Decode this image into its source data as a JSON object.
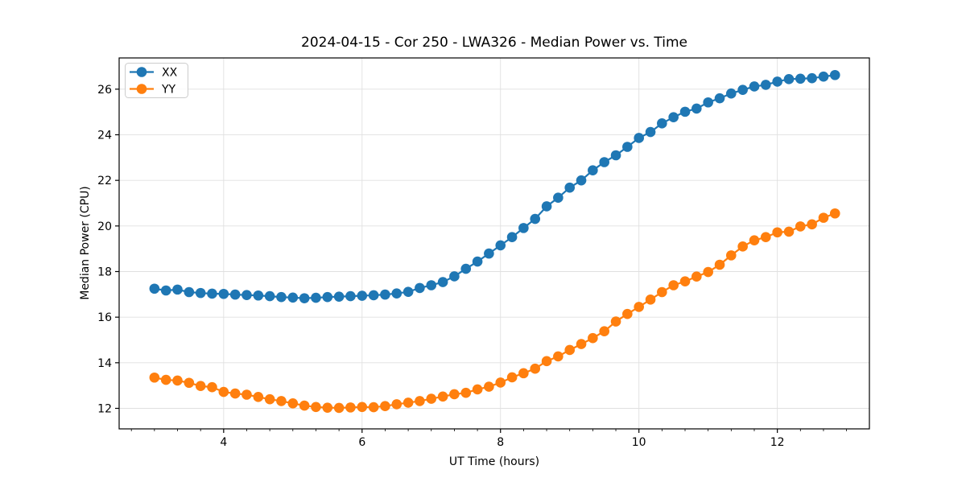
{
  "figure": {
    "background": "#ffffff",
    "plot_background": "#ffffff",
    "spine_color": "#000000",
    "grid_color": "#e0e0e0"
  },
  "chart_data": {
    "type": "line",
    "title": "2024-04-15 - Cor 250 - LWA326 - Median Power vs. Time",
    "xlabel": "UT Time (hours)",
    "ylabel": "Median Power (CPU)",
    "xlim": [
      2.49,
      13.33
    ],
    "ylim": [
      11.1,
      27.37
    ],
    "x_major_ticks": [
      4,
      6,
      8,
      10,
      12
    ],
    "x_minor_tick_step": 0.33333,
    "y_major_ticks": [
      12,
      14,
      16,
      18,
      20,
      22,
      24,
      26
    ],
    "grid": true,
    "legend_position": "upper-left",
    "series": [
      {
        "name": "XX",
        "color": "#1f77b4",
        "x": [
          3.0,
          3.167,
          3.333,
          3.5,
          3.667,
          3.833,
          4.0,
          4.167,
          4.333,
          4.5,
          4.667,
          4.833,
          5.0,
          5.167,
          5.333,
          5.5,
          5.667,
          5.833,
          6.0,
          6.167,
          6.333,
          6.5,
          6.667,
          6.833,
          7.0,
          7.167,
          7.333,
          7.5,
          7.667,
          7.833,
          8.0,
          8.167,
          8.333,
          8.5,
          8.667,
          8.833,
          9.0,
          9.167,
          9.333,
          9.5,
          9.667,
          9.833,
          10.0,
          10.167,
          10.333,
          10.5,
          10.667,
          10.833,
          11.0,
          11.167,
          11.333,
          11.5,
          11.667,
          11.833,
          12.0,
          12.167,
          12.333,
          12.5,
          12.667,
          12.833
        ],
        "y": [
          17.25,
          17.17,
          17.21,
          17.1,
          17.06,
          17.03,
          17.02,
          16.99,
          16.97,
          16.95,
          16.92,
          16.88,
          16.86,
          16.83,
          16.85,
          16.88,
          16.9,
          16.92,
          16.94,
          16.96,
          16.99,
          17.04,
          17.11,
          17.28,
          17.4,
          17.54,
          17.79,
          18.12,
          18.44,
          18.79,
          19.15,
          19.51,
          19.91,
          20.31,
          20.86,
          21.24,
          21.68,
          22.0,
          22.44,
          22.8,
          23.1,
          23.47,
          23.86,
          24.12,
          24.5,
          24.77,
          25.01,
          25.15,
          25.42,
          25.6,
          25.81,
          25.97,
          26.12,
          26.19,
          26.33,
          26.44,
          26.46,
          26.48,
          26.55,
          26.62
        ]
      },
      {
        "name": "YY",
        "color": "#ff7f0e",
        "x": [
          3.0,
          3.167,
          3.333,
          3.5,
          3.667,
          3.833,
          4.0,
          4.167,
          4.333,
          4.5,
          4.667,
          4.833,
          5.0,
          5.167,
          5.333,
          5.5,
          5.667,
          5.833,
          6.0,
          6.167,
          6.333,
          6.5,
          6.667,
          6.833,
          7.0,
          7.167,
          7.333,
          7.5,
          7.667,
          7.833,
          8.0,
          8.167,
          8.333,
          8.5,
          8.667,
          8.833,
          9.0,
          9.167,
          9.333,
          9.5,
          9.667,
          9.833,
          10.0,
          10.167,
          10.333,
          10.5,
          10.667,
          10.833,
          11.0,
          11.167,
          11.333,
          11.5,
          11.667,
          11.833,
          12.0,
          12.167,
          12.333,
          12.5,
          12.667,
          12.833
        ],
        "y": [
          13.35,
          13.25,
          13.22,
          13.12,
          12.98,
          12.93,
          12.72,
          12.65,
          12.6,
          12.5,
          12.4,
          12.32,
          12.22,
          12.12,
          12.06,
          12.03,
          12.02,
          12.04,
          12.06,
          12.05,
          12.1,
          12.18,
          12.25,
          12.32,
          12.42,
          12.52,
          12.62,
          12.68,
          12.83,
          12.95,
          13.13,
          13.36,
          13.54,
          13.74,
          14.07,
          14.28,
          14.56,
          14.82,
          15.08,
          15.38,
          15.81,
          16.14,
          16.45,
          16.77,
          17.1,
          17.4,
          17.57,
          17.78,
          17.98,
          18.3,
          18.71,
          19.1,
          19.37,
          19.51,
          19.72,
          19.75,
          19.98,
          20.07,
          20.36,
          20.55
        ]
      }
    ]
  }
}
